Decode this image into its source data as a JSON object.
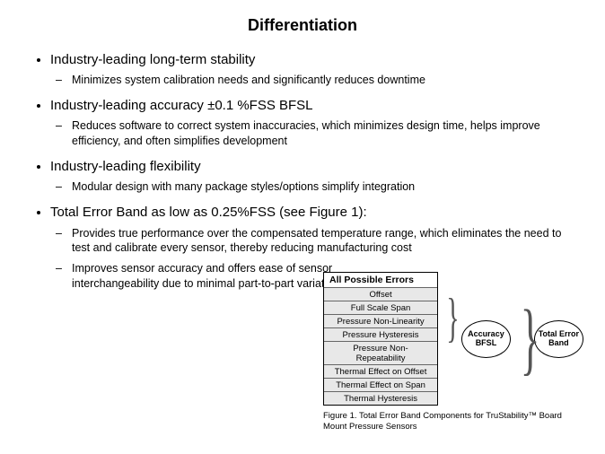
{
  "title": "Differentiation",
  "bullets": [
    {
      "text": "Industry-leading long-term stability",
      "subs": [
        "Minimizes system calibration needs and significantly  reduces downtime"
      ]
    },
    {
      "text": "Industry-leading accuracy ±0.1 %FSS BFSL",
      "subs": [
        "Reduces software to correct system inaccuracies,  which minimizes design time, helps improve efficiency,  and often simplifies  development"
      ]
    },
    {
      "text": "Industry-leading flexibility",
      "subs": [
        "Modular design with many package styles/options simplify  integration"
      ]
    },
    {
      "text": "Total Error Band as low as 0.25%FSS (see Figure 1):",
      "subs": [
        "Provides true performance over the compensated temperature range, which eliminates  the need to test and calibrate  every sensor, thereby reducing manufacturing cost",
        "Improves sensor accuracy and offers ease of sensor interchangeability due to minimal part-to-part variation"
      ]
    }
  ],
  "figure": {
    "box_title": "All Possible Errors",
    "rows": [
      "Offset",
      "Full Scale Span",
      "Pressure Non-Linearity",
      "Pressure Hysteresis",
      "Pressure Non-Repeatability",
      "Thermal Effect on Offset",
      "Thermal Effect on Span",
      "Thermal Hysteresis"
    ],
    "oval1": "Accuracy BFSL",
    "oval2": "Total Error Band",
    "caption": "Figure 1. Total Error Band Components for TruStability™ Board Mount Pressure Sensors"
  },
  "colors": {
    "background": "#ffffff",
    "text": "#000000",
    "row_bg": "#e8e8e8",
    "row_border": "#666666"
  }
}
